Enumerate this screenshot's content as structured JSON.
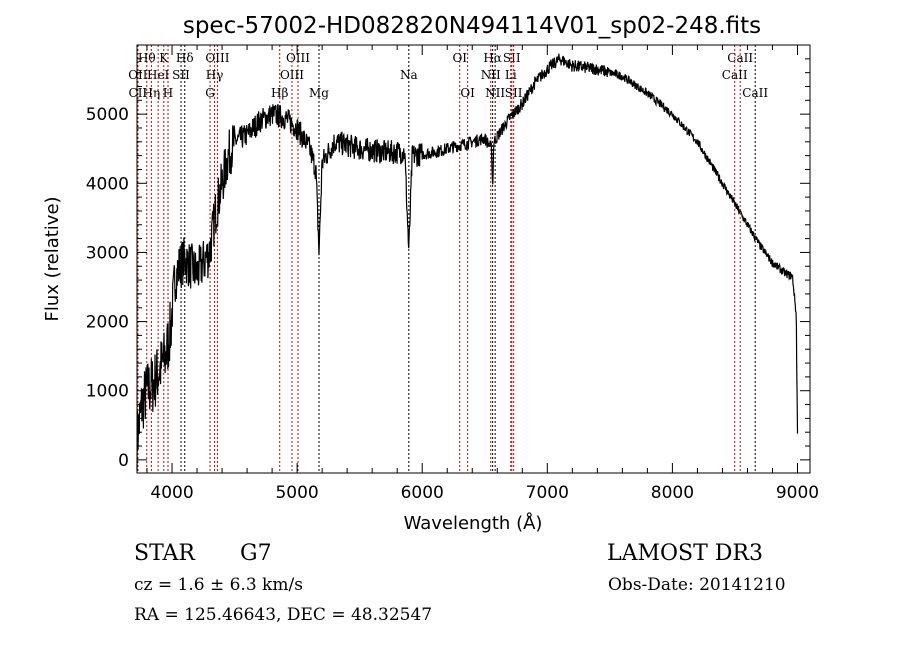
{
  "chart_data": {
    "type": "line",
    "title": "spec-57002-HD082820N494114V01_sp02-248.fits",
    "xlabel": "Wavelength (Å)",
    "ylabel": "Flux (relative)",
    "xlim": [
      3720,
      9100
    ],
    "ylim": [
      -190,
      6000
    ],
    "grid": false,
    "x_ticks": [
      4000,
      5000,
      6000,
      7000,
      8000,
      9000
    ],
    "y_ticks": [
      0,
      1000,
      2000,
      3000,
      4000,
      5000
    ],
    "series": [
      {
        "name": "spectrum",
        "color": "#000000",
        "anchors": [
          [
            3720,
            300
          ],
          [
            3760,
            800
          ],
          [
            3800,
            1000
          ],
          [
            3850,
            1100
          ],
          [
            3900,
            1300
          ],
          [
            3950,
            1500
          ],
          [
            3990,
            1900
          ],
          [
            4020,
            2600
          ],
          [
            4060,
            2800
          ],
          [
            4100,
            2900
          ],
          [
            4200,
            2700
          ],
          [
            4300,
            3000
          ],
          [
            4350,
            3600
          ],
          [
            4400,
            4000
          ],
          [
            4450,
            4400
          ],
          [
            4500,
            4600
          ],
          [
            4600,
            4700
          ],
          [
            4700,
            4900
          ],
          [
            4800,
            5000
          ],
          [
            4900,
            4950
          ],
          [
            5000,
            4800
          ],
          [
            5100,
            4500
          ],
          [
            5150,
            4200
          ],
          [
            5175,
            3000
          ],
          [
            5200,
            4300
          ],
          [
            5300,
            4600
          ],
          [
            5500,
            4500
          ],
          [
            5700,
            4450
          ],
          [
            5860,
            4450
          ],
          [
            5893,
            3000
          ],
          [
            5920,
            4400
          ],
          [
            6100,
            4450
          ],
          [
            6300,
            4550
          ],
          [
            6500,
            4650
          ],
          [
            6555,
            4500
          ],
          [
            6563,
            3900
          ],
          [
            6572,
            4600
          ],
          [
            6700,
            4950
          ],
          [
            6800,
            5150
          ],
          [
            6900,
            5450
          ],
          [
            7000,
            5650
          ],
          [
            7100,
            5800
          ],
          [
            7200,
            5700
          ],
          [
            7400,
            5650
          ],
          [
            7600,
            5550
          ],
          [
            7800,
            5300
          ],
          [
            8000,
            5000
          ],
          [
            8200,
            4600
          ],
          [
            8400,
            4000
          ],
          [
            8500,
            3700
          ],
          [
            8600,
            3400
          ],
          [
            8700,
            3100
          ],
          [
            8800,
            2850
          ],
          [
            8900,
            2700
          ],
          [
            8960,
            2650
          ],
          [
            8990,
            2100
          ],
          [
            9000,
            400
          ]
        ]
      }
    ],
    "lines": [
      {
        "label": "Hθ",
        "wl": 3798,
        "row": 0,
        "color": "#cc0000"
      },
      {
        "label": "K",
        "wl": 3934,
        "row": 0,
        "color": "#cc0000"
      },
      {
        "label": "Hδ",
        "wl": 4102,
        "row": 0,
        "color": "#000000"
      },
      {
        "label": "OIII",
        "wl": 4363,
        "row": 0,
        "color": "#cc0000"
      },
      {
        "label": "OIII",
        "wl": 5007,
        "row": 0,
        "color": "#cc0000"
      },
      {
        "label": "OI",
        "wl": 6300,
        "row": 0,
        "color": "#cc0000"
      },
      {
        "label": "Hα",
        "wl": 6563,
        "row": 0,
        "color": "#000000"
      },
      {
        "label": "SII",
        "wl": 6716,
        "row": 0,
        "color": "#cc0000"
      },
      {
        "label": "CaII",
        "wl": 8542,
        "row": 0,
        "color": "#cc0000"
      },
      {
        "label": "OII",
        "wl": 3727,
        "row": 1,
        "color": "#cc0000"
      },
      {
        "label": "HeI",
        "wl": 3889,
        "row": 1,
        "color": "#cc0000"
      },
      {
        "label": "SII",
        "wl": 4072,
        "row": 1,
        "color": "#000000"
      },
      {
        "label": "Hγ",
        "wl": 4340,
        "row": 1,
        "color": "#cc0000"
      },
      {
        "label": "OIII",
        "wl": 4959,
        "row": 1,
        "color": "#cc0000"
      },
      {
        "label": "Na",
        "wl": 5893,
        "row": 1,
        "color": "#000000"
      },
      {
        "label": "NII",
        "wl": 6548,
        "row": 1,
        "color": "#cc0000"
      },
      {
        "label": "Li",
        "wl": 6708,
        "row": 1,
        "color": "#cc0000"
      },
      {
        "label": "CaII",
        "wl": 8498,
        "row": 1,
        "color": "#cc0000"
      },
      {
        "label": "CII",
        "wl": 3727,
        "row": 2,
        "color": "#cc0000"
      },
      {
        "label": "Hη",
        "wl": 3835,
        "row": 2,
        "color": "#cc0000"
      },
      {
        "label": "H",
        "wl": 3968,
        "row": 2,
        "color": "#cc0000"
      },
      {
        "label": "G",
        "wl": 4304,
        "row": 2,
        "color": "#cc0000"
      },
      {
        "label": "Hβ",
        "wl": 4861,
        "row": 2,
        "color": "#cc0000"
      },
      {
        "label": "Mg",
        "wl": 5175,
        "row": 2,
        "color": "#000000"
      },
      {
        "label": "OI",
        "wl": 6363,
        "row": 2,
        "color": "#cc0000"
      },
      {
        "label": "NII",
        "wl": 6583,
        "row": 2,
        "color": "#000000"
      },
      {
        "label": "SII",
        "wl": 6731,
        "row": 2,
        "color": "#cc0000"
      },
      {
        "label": "CaII",
        "wl": 8662,
        "row": 2,
        "color": "#000000"
      }
    ]
  },
  "info": {
    "object_class": "STAR",
    "subclass": "G7",
    "survey": "LAMOST DR3",
    "cz": "cz = 1.6 ± 6.3 km/s",
    "obs_date": "Obs-Date: 20141210",
    "coords": "RA = 125.46643, DEC =  48.32547"
  }
}
